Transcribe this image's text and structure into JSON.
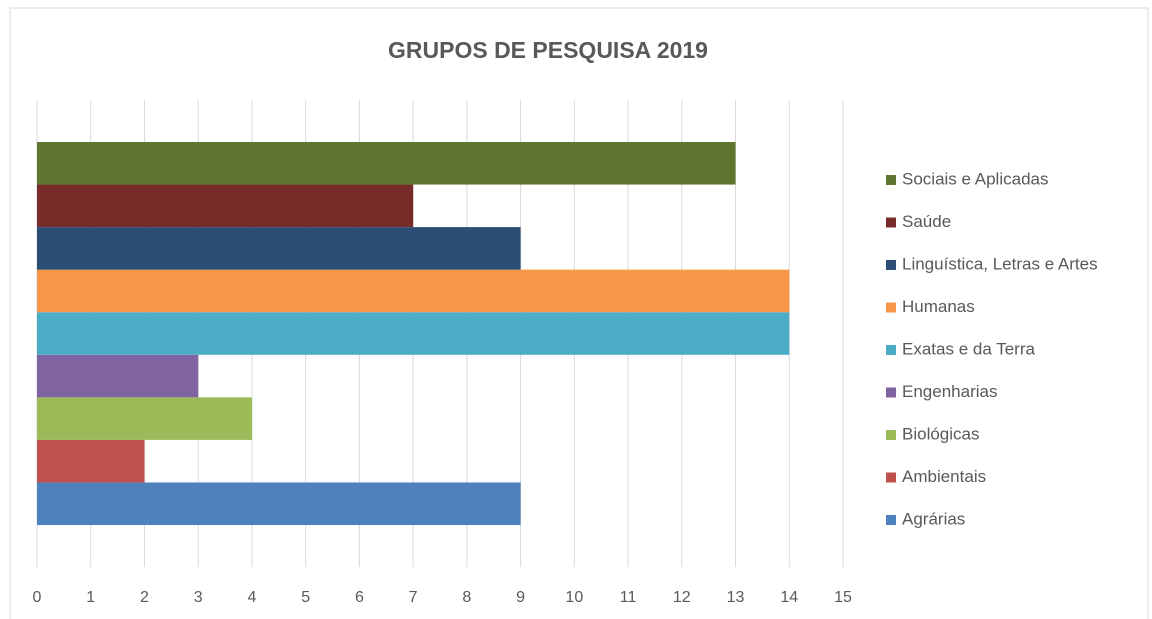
{
  "chart_data": {
    "type": "bar",
    "orientation": "horizontal",
    "title": "GRUPOS DE PESQUISA 2019",
    "categories": [
      null
    ],
    "series": [
      {
        "name": "Agrárias",
        "color": "#4f81bd",
        "values": [
          9
        ]
      },
      {
        "name": "Ambientais",
        "color": "#c0504d",
        "values": [
          2
        ]
      },
      {
        "name": "Biológicas",
        "color": "#9bbb59",
        "values": [
          4
        ]
      },
      {
        "name": "Engenharias",
        "color": "#8064a2",
        "values": [
          3
        ]
      },
      {
        "name": "Exatas e da Terra",
        "color": "#4bacc6",
        "values": [
          14
        ]
      },
      {
        "name": "Humanas",
        "color": "#f79646",
        "values": [
          14
        ]
      },
      {
        "name": "Linguística, Letras e Artes",
        "color": "#2c4d75",
        "values": [
          9
        ]
      },
      {
        "name": "Saúde",
        "color": "#772c2a",
        "values": [
          7
        ]
      },
      {
        "name": "Sociais e Aplicadas",
        "color": "#5f7530",
        "values": [
          13
        ]
      }
    ],
    "xlim": [
      0,
      15
    ],
    "xticks": [
      0,
      1,
      2,
      3,
      4,
      5,
      6,
      7,
      8,
      9,
      10,
      11,
      12,
      13,
      14,
      15
    ],
    "grid": true,
    "legend": "right"
  }
}
